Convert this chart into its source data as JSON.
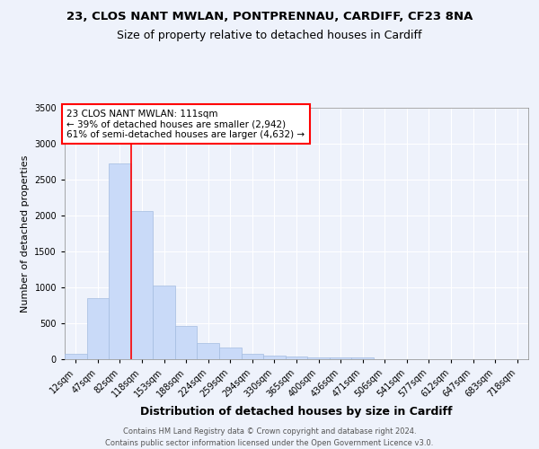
{
  "title_line1": "23, CLOS NANT MWLAN, PONTPRENNAU, CARDIFF, CF23 8NA",
  "title_line2": "Size of property relative to detached houses in Cardiff",
  "xlabel": "Distribution of detached houses by size in Cardiff",
  "ylabel": "Number of detached properties",
  "categories": [
    "12sqm",
    "47sqm",
    "82sqm",
    "118sqm",
    "153sqm",
    "188sqm",
    "224sqm",
    "259sqm",
    "294sqm",
    "330sqm",
    "365sqm",
    "400sqm",
    "436sqm",
    "471sqm",
    "506sqm",
    "541sqm",
    "577sqm",
    "612sqm",
    "647sqm",
    "683sqm",
    "718sqm"
  ],
  "values": [
    70,
    850,
    2720,
    2060,
    1020,
    460,
    230,
    165,
    80,
    55,
    40,
    30,
    30,
    25,
    0,
    0,
    0,
    0,
    0,
    0,
    0
  ],
  "bar_color": "#c9daf8",
  "bar_edge_color": "#a4bce0",
  "vline_color": "red",
  "vline_x_index": 2.5,
  "annotation_text": "23 CLOS NANT MWLAN: 111sqm\n← 39% of detached houses are smaller (2,942)\n61% of semi-detached houses are larger (4,632) →",
  "annotation_box_color": "white",
  "annotation_box_edge": "red",
  "ylim": [
    0,
    3500
  ],
  "yticks": [
    0,
    500,
    1000,
    1500,
    2000,
    2500,
    3000,
    3500
  ],
  "footnote1": "Contains HM Land Registry data © Crown copyright and database right 2024.",
  "footnote2": "Contains public sector information licensed under the Open Government Licence v3.0.",
  "background_color": "#eef2fb",
  "plot_bg_color": "#eef2fb",
  "title1_fontsize": 9.5,
  "title2_fontsize": 9,
  "xlabel_fontsize": 9,
  "ylabel_fontsize": 8,
  "tick_fontsize": 7,
  "footnote_fontsize": 6,
  "annotation_fontsize": 7.5
}
